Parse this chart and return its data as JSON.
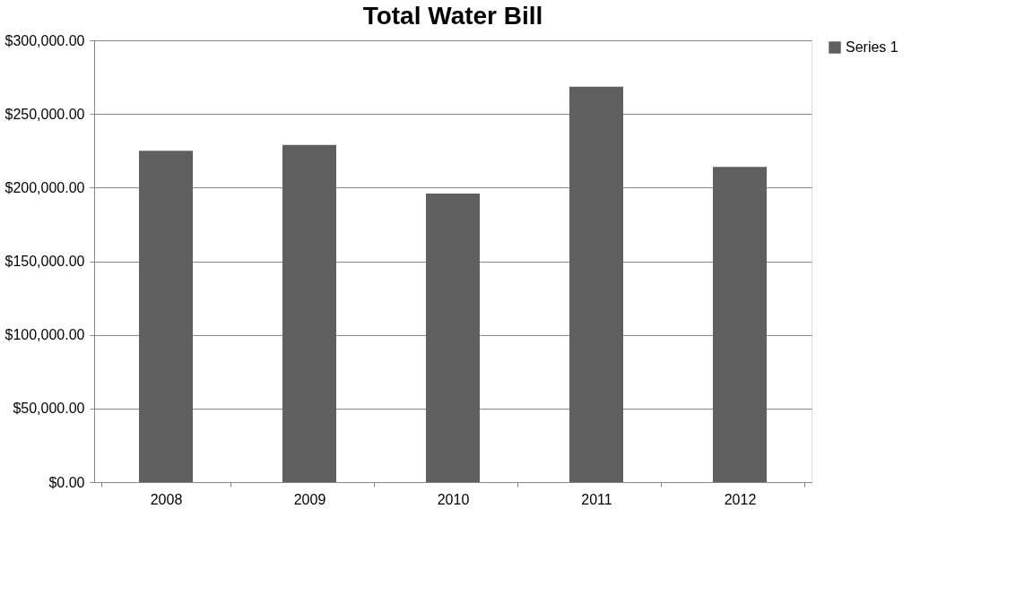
{
  "chart_data": {
    "type": "bar",
    "title": "Total Water Bill",
    "categories": [
      "2008",
      "2009",
      "2010",
      "2011",
      "2012"
    ],
    "series": [
      {
        "name": "Series 1",
        "color": "#5f5f5f",
        "values": [
          225000,
          229000,
          196000,
          268500,
          214000
        ]
      }
    ],
    "ylim": [
      0,
      300000
    ],
    "yticks": [
      {
        "value": 0,
        "label": "$0.00"
      },
      {
        "value": 50000,
        "label": "$50,000.00"
      },
      {
        "value": 100000,
        "label": "$100,000.00"
      },
      {
        "value": 150000,
        "label": "$150,000.00"
      },
      {
        "value": 200000,
        "label": "$200,000.00"
      },
      {
        "value": 250000,
        "label": "$250,000.00"
      },
      {
        "value": 300000,
        "label": "$300,000.00"
      }
    ],
    "grid": "y",
    "legend": "right"
  }
}
